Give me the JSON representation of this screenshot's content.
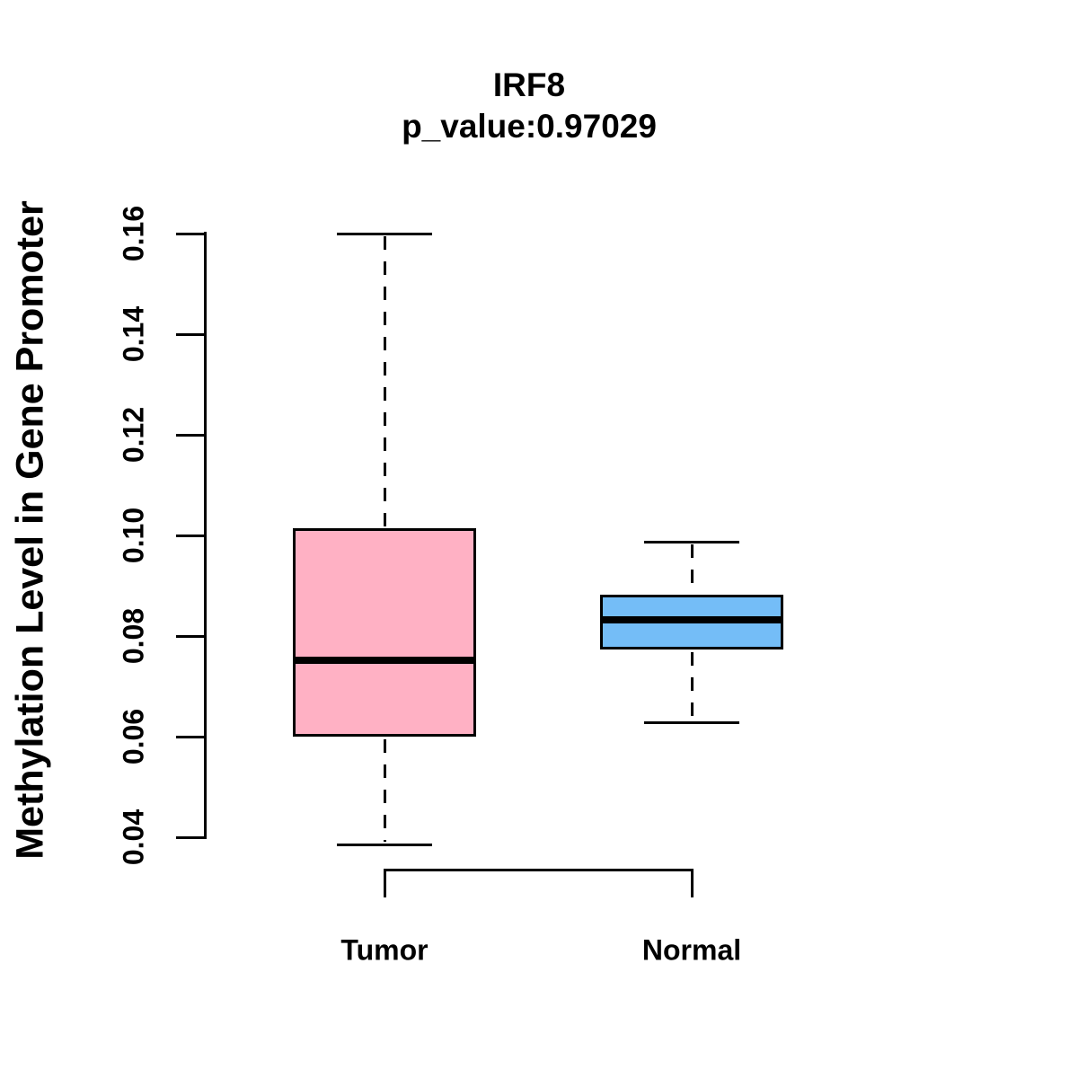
{
  "chart_data": {
    "type": "boxplot",
    "title": "IRF8",
    "subtitle": "p_value:0.97029",
    "ylabel": "Methylation Level in Gene Promoter",
    "xlabel": "",
    "categories": [
      "Tumor",
      "Normal"
    ],
    "y_ticks": [
      0.04,
      0.06,
      0.08,
      0.1,
      0.12,
      0.14,
      0.16
    ],
    "y_tick_labels": [
      "0.04",
      "0.06",
      "0.08",
      "0.10",
      "0.12",
      "0.14",
      "0.16"
    ],
    "ylim": [
      0.04,
      0.16
    ],
    "grid": false,
    "legend": "none",
    "series": [
      {
        "name": "Tumor",
        "fill_color": "#FFB1C4",
        "whisker_low": 0.0385,
        "q1": 0.06,
        "median": 0.0752,
        "q3": 0.1015,
        "whisker_high": 0.16
      },
      {
        "name": "Normal",
        "fill_color": "#74BDF7",
        "whisker_low": 0.0628,
        "q1": 0.0773,
        "median": 0.0833,
        "q3": 0.0883,
        "whisker_high": 0.0987
      }
    ],
    "colors": {
      "line": "#000000",
      "background": "#FFFFFF",
      "tumor_fill": "#FFB1C4",
      "normal_fill": "#74BDF7"
    }
  }
}
